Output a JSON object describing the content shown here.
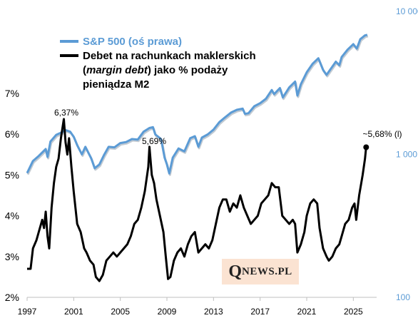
{
  "chart_data": {
    "type": "line",
    "x_ticks": [
      "1997",
      "2001",
      "2005",
      "2009",
      "2013",
      "2017",
      "2021",
      "2025"
    ],
    "y_left_ticks": [
      "2%",
      "3%",
      "4%",
      "5%",
      "6%",
      "7%"
    ],
    "y_left_range": [
      2,
      7
    ],
    "y_right_ticks": [
      "100",
      "1 000",
      "10 000"
    ],
    "y_right_range": [
      100,
      10000
    ],
    "y_right_scale": "log",
    "legend_placement": "top-left",
    "legend": {
      "sp500": "S&P 500 (oś prawa)",
      "margin_line1": "Debet na rachunkach  maklerskich",
      "margin_line2_italic": "margin debt",
      "margin_line2_open": "(",
      "margin_line2_rest": ") jako % podaży",
      "margin_line3": "pieniądza M2"
    },
    "annotations": {
      "peak_2000": "6,37%",
      "peak_2007": "5,69%",
      "latest": "~5,68% (l)"
    },
    "colors": {
      "sp500": "#5b9bd5",
      "margin": "#000000",
      "logo_bg": "#fbe3d2"
    },
    "series": [
      {
        "name": "S&P 500 (oś prawa)",
        "axis": "right",
        "points": [
          [
            1997.0,
            740
          ],
          [
            1997.5,
            900
          ],
          [
            1998.0,
            975
          ],
          [
            1998.6,
            1090
          ],
          [
            1998.75,
            960
          ],
          [
            1999.0,
            1230
          ],
          [
            1999.5,
            1370
          ],
          [
            2000.0,
            1430
          ],
          [
            2000.3,
            1480
          ],
          [
            2000.7,
            1440
          ],
          [
            2001.0,
            1330
          ],
          [
            2001.3,
            1160
          ],
          [
            2001.7,
            1000
          ],
          [
            2002.0,
            1130
          ],
          [
            2002.5,
            940
          ],
          [
            2002.8,
            800
          ],
          [
            2003.2,
            850
          ],
          [
            2003.6,
            990
          ],
          [
            2004.0,
            1130
          ],
          [
            2004.5,
            1120
          ],
          [
            2005.0,
            1200
          ],
          [
            2005.5,
            1220
          ],
          [
            2006.0,
            1280
          ],
          [
            2006.5,
            1270
          ],
          [
            2007.0,
            1440
          ],
          [
            2007.5,
            1530
          ],
          [
            2007.8,
            1550
          ],
          [
            2008.0,
            1380
          ],
          [
            2008.5,
            1280
          ],
          [
            2008.8,
            950
          ],
          [
            2009.0,
            850
          ],
          [
            2009.2,
            735
          ],
          [
            2009.5,
            950
          ],
          [
            2010.0,
            1100
          ],
          [
            2010.5,
            1050
          ],
          [
            2011.0,
            1300
          ],
          [
            2011.4,
            1340
          ],
          [
            2011.7,
            1130
          ],
          [
            2012.0,
            1310
          ],
          [
            2012.5,
            1380
          ],
          [
            2013.0,
            1490
          ],
          [
            2013.5,
            1680
          ],
          [
            2014.0,
            1820
          ],
          [
            2014.5,
            1960
          ],
          [
            2015.0,
            2050
          ],
          [
            2015.5,
            2090
          ],
          [
            2015.7,
            1920
          ],
          [
            2016.0,
            1940
          ],
          [
            2016.5,
            2170
          ],
          [
            2017.0,
            2280
          ],
          [
            2017.5,
            2450
          ],
          [
            2018.0,
            2820
          ],
          [
            2018.2,
            2640
          ],
          [
            2018.7,
            2910
          ],
          [
            2018.95,
            2500
          ],
          [
            2019.5,
            2940
          ],
          [
            2020.0,
            3230
          ],
          [
            2020.2,
            2580
          ],
          [
            2020.5,
            3100
          ],
          [
            2021.0,
            3750
          ],
          [
            2021.5,
            4300
          ],
          [
            2022.0,
            4700
          ],
          [
            2022.4,
            3900
          ],
          [
            2022.7,
            3600
          ],
          [
            2023.0,
            3900
          ],
          [
            2023.5,
            4450
          ],
          [
            2023.8,
            4200
          ],
          [
            2024.0,
            4800
          ],
          [
            2024.5,
            5400
          ],
          [
            2025.0,
            5900
          ],
          [
            2025.3,
            5500
          ],
          [
            2025.6,
            6400
          ],
          [
            2026.0,
            6800
          ],
          [
            2026.2,
            6850
          ]
        ]
      },
      {
        "name": "Debet na rachunkach maklerskich (margin debt) jako % podaży pieniądza M2",
        "axis": "left",
        "points": [
          [
            1997.0,
            2.7
          ],
          [
            1997.3,
            2.7
          ],
          [
            1997.5,
            3.2
          ],
          [
            1997.8,
            3.4
          ],
          [
            1998.0,
            3.6
          ],
          [
            1998.3,
            3.9
          ],
          [
            1998.45,
            3.7
          ],
          [
            1998.6,
            4.1
          ],
          [
            1998.75,
            3.5
          ],
          [
            1998.9,
            3.2
          ],
          [
            1999.1,
            4.2
          ],
          [
            1999.3,
            4.8
          ],
          [
            1999.5,
            5.2
          ],
          [
            1999.7,
            5.4
          ],
          [
            1999.9,
            5.9
          ],
          [
            2000.15,
            6.37
          ],
          [
            2000.3,
            5.8
          ],
          [
            2000.45,
            5.5
          ],
          [
            2000.6,
            5.9
          ],
          [
            2000.8,
            5.2
          ],
          [
            2001.0,
            4.6
          ],
          [
            2001.3,
            3.8
          ],
          [
            2001.6,
            3.6
          ],
          [
            2001.9,
            3.2
          ],
          [
            2002.1,
            3.1
          ],
          [
            2002.4,
            2.9
          ],
          [
            2002.7,
            2.8
          ],
          [
            2002.9,
            2.5
          ],
          [
            2003.2,
            2.4
          ],
          [
            2003.5,
            2.55
          ],
          [
            2003.8,
            2.9
          ],
          [
            2004.1,
            3.0
          ],
          [
            2004.4,
            3.1
          ],
          [
            2004.7,
            3.0
          ],
          [
            2005.0,
            3.1
          ],
          [
            2005.3,
            3.2
          ],
          [
            2005.6,
            3.3
          ],
          [
            2005.9,
            3.5
          ],
          [
            2006.2,
            3.8
          ],
          [
            2006.5,
            3.9
          ],
          [
            2006.8,
            4.2
          ],
          [
            2007.1,
            4.6
          ],
          [
            2007.4,
            5.2
          ],
          [
            2007.5,
            5.69
          ],
          [
            2007.7,
            5.0
          ],
          [
            2007.9,
            4.8
          ],
          [
            2008.1,
            4.4
          ],
          [
            2008.4,
            4.0
          ],
          [
            2008.7,
            3.6
          ],
          [
            2008.9,
            3.0
          ],
          [
            2009.1,
            2.45
          ],
          [
            2009.3,
            2.5
          ],
          [
            2009.6,
            2.9
          ],
          [
            2009.9,
            3.1
          ],
          [
            2010.2,
            3.2
          ],
          [
            2010.5,
            3.0
          ],
          [
            2010.8,
            3.3
          ],
          [
            2011.1,
            3.5
          ],
          [
            2011.4,
            3.6
          ],
          [
            2011.7,
            3.1
          ],
          [
            2012.0,
            3.2
          ],
          [
            2012.3,
            3.3
          ],
          [
            2012.6,
            3.2
          ],
          [
            2012.9,
            3.4
          ],
          [
            2013.2,
            3.8
          ],
          [
            2013.5,
            4.2
          ],
          [
            2013.8,
            4.4
          ],
          [
            2014.1,
            4.4
          ],
          [
            2014.4,
            4.1
          ],
          [
            2014.7,
            4.3
          ],
          [
            2015.0,
            4.2
          ],
          [
            2015.3,
            4.5
          ],
          [
            2015.6,
            4.2
          ],
          [
            2015.9,
            4.0
          ],
          [
            2016.2,
            3.8
          ],
          [
            2016.5,
            3.9
          ],
          [
            2016.8,
            4.0
          ],
          [
            2017.1,
            4.3
          ],
          [
            2017.4,
            4.4
          ],
          [
            2017.7,
            4.5
          ],
          [
            2018.0,
            4.8
          ],
          [
            2018.3,
            4.7
          ],
          [
            2018.6,
            4.7
          ],
          [
            2018.9,
            4.0
          ],
          [
            2019.2,
            3.9
          ],
          [
            2019.5,
            3.8
          ],
          [
            2019.8,
            3.9
          ],
          [
            2020.0,
            3.8
          ],
          [
            2020.2,
            3.1
          ],
          [
            2020.5,
            3.3
          ],
          [
            2020.8,
            3.6
          ],
          [
            2021.0,
            4.0
          ],
          [
            2021.3,
            4.3
          ],
          [
            2021.6,
            4.4
          ],
          [
            2021.9,
            4.3
          ],
          [
            2022.1,
            3.7
          ],
          [
            2022.4,
            3.2
          ],
          [
            2022.7,
            3.0
          ],
          [
            2022.9,
            2.9
          ],
          [
            2023.2,
            3.0
          ],
          [
            2023.5,
            3.2
          ],
          [
            2023.8,
            3.3
          ],
          [
            2024.0,
            3.5
          ],
          [
            2024.3,
            3.8
          ],
          [
            2024.6,
            3.9
          ],
          [
            2024.9,
            4.2
          ],
          [
            2025.1,
            4.3
          ],
          [
            2025.25,
            3.9
          ],
          [
            2025.5,
            4.5
          ],
          [
            2025.8,
            5.0
          ],
          [
            2026.0,
            5.4
          ],
          [
            2026.1,
            5.68
          ]
        ]
      }
    ]
  },
  "logo": {
    "q": "Q",
    "rest": "NEWS.PL"
  }
}
